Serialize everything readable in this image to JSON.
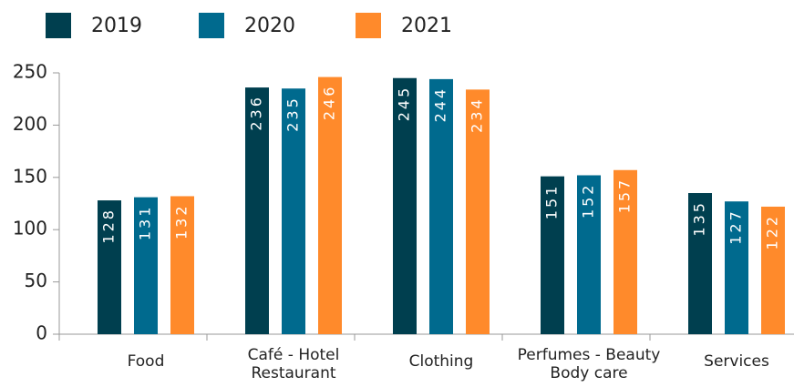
{
  "chart_data": {
    "type": "bar",
    "categories": [
      "Food",
      "Café - Hotel\nRestaurant",
      "Clothing",
      "Perfumes - Beauty\nBody care",
      "Services"
    ],
    "series": [
      {
        "name": "2019",
        "color": "#003f4f",
        "values": [
          128,
          236,
          245,
          151,
          135
        ]
      },
      {
        "name": "2020",
        "color": "#006a8e",
        "values": [
          131,
          235,
          244,
          152,
          127
        ]
      },
      {
        "name": "2021",
        "color": "#ff8a2b",
        "values": [
          132,
          246,
          234,
          157,
          122
        ]
      }
    ],
    "ylim": [
      0,
      250
    ],
    "yticks": [
      0,
      50,
      100,
      150,
      200,
      250
    ],
    "legend": "top-left"
  }
}
